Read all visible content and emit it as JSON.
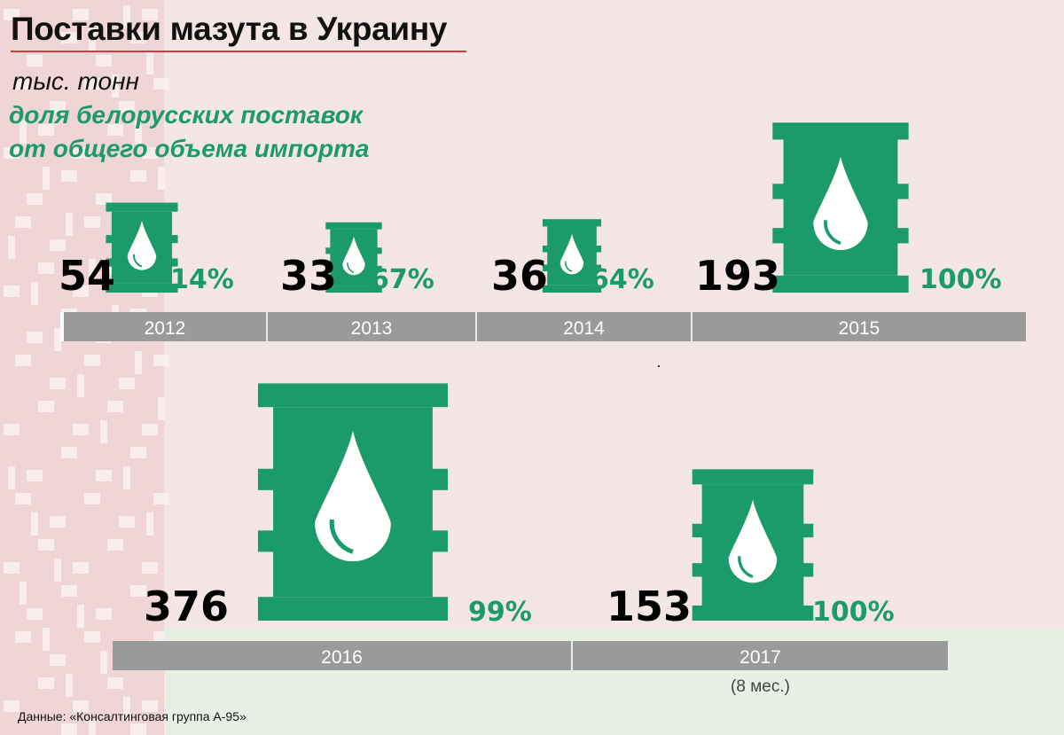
{
  "header": {
    "title": "Поставки мазута в Украину",
    "units": "тыс. тонн",
    "share_line1": "доля белорусских поставок",
    "share_line2": "от общего объема импорта"
  },
  "footer": {
    "source": "Данные: «Консалтинговая группа А-95»"
  },
  "colors": {
    "barrel": "#1b9a6a",
    "percent": "#1b9a6a",
    "value": "#000000",
    "year_bar": "#9a9a9a",
    "title_rule": "#d9383a"
  },
  "icons": {
    "barrel": "oil-barrel-icon",
    "drop": "oil-drop-icon"
  },
  "chart_data": {
    "type": "pictogram",
    "unit": "тыс. тонн",
    "categories": [
      "2012",
      "2013",
      "2014",
      "2015",
      "2016",
      "2017"
    ],
    "category_notes": [
      "",
      "",
      "",
      "",
      "",
      "(8 мес.)"
    ],
    "series": [
      {
        "name": "тыс. тонн",
        "values": [
          54,
          33,
          36,
          193,
          376,
          153
        ]
      },
      {
        "name": "доля белорусских поставок от общего объема импорта",
        "values": [
          14,
          67,
          64,
          100,
          99,
          100
        ],
        "value_labels": [
          "14%",
          "67%",
          "64%",
          "100%",
          "99%",
          "100%"
        ]
      }
    ]
  }
}
